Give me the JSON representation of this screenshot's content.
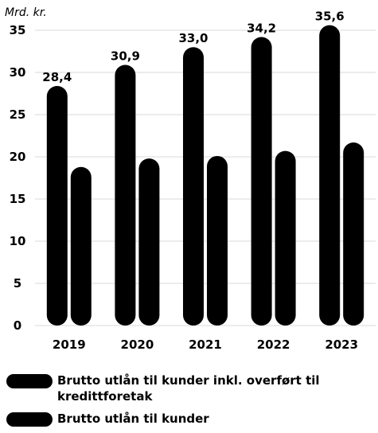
{
  "chart_data": {
    "type": "bar",
    "unit_label": "Mrd. kr.",
    "categories": [
      "2019",
      "2020",
      "2021",
      "2022",
      "2023"
    ],
    "series": [
      {
        "name": "Brutto utlån til kunder inkl. overført til kredittforetak",
        "values": [
          28.4,
          30.9,
          33.0,
          34.2,
          35.6
        ],
        "data_labels": [
          "28,4",
          "30,9",
          "33,0",
          "34,2",
          "35,6"
        ],
        "color": "#000000"
      },
      {
        "name": "Brutto utlån til kunder",
        "values": [
          18.8,
          19.8,
          20.1,
          20.7,
          21.7
        ],
        "color": "#000000"
      }
    ],
    "yticks": [
      "0",
      "5",
      "10",
      "15",
      "20",
      "25",
      "30",
      "35"
    ],
    "ylim": [
      0,
      35
    ],
    "grid": true,
    "legend_position": "bottom"
  }
}
